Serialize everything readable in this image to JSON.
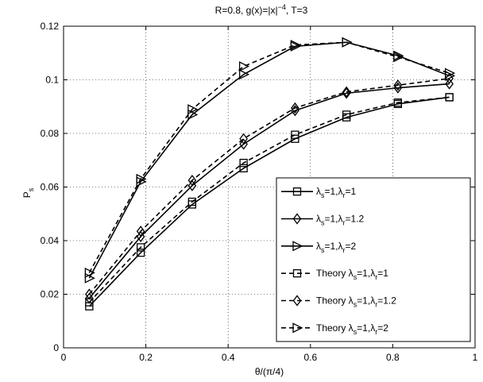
{
  "chart_data": {
    "type": "line",
    "title_prefix": "R=0.8, g(x)=|x|",
    "title_exp": "−4",
    "title_suffix": ", T=3",
    "xlabel": "θ/(π/4)",
    "ylabel_main": "P",
    "ylabel_sub": "s",
    "xlim": [
      0,
      1
    ],
    "ylim": [
      0,
      0.12
    ],
    "xticks": [
      "0",
      "0.2",
      "0.4",
      "0.6",
      "0.8",
      "1"
    ],
    "yticks": [
      "0",
      "0.02",
      "0.04",
      "0.06",
      "0.08",
      "0.1",
      "0.12"
    ],
    "grid": true,
    "legend_position": "bottom-right",
    "x": [
      0.0625,
      0.1875,
      0.3125,
      0.4375,
      0.5625,
      0.6875,
      0.8125,
      0.9375
    ],
    "series": [
      {
        "legend_prefix": "",
        "lr": "1",
        "marker": "square",
        "dash": "solid",
        "values": [
          0.0155,
          0.0355,
          0.0535,
          0.067,
          0.078,
          0.086,
          0.091,
          0.0935
        ]
      },
      {
        "legend_prefix": "",
        "lr": "1.2",
        "marker": "diamond",
        "dash": "solid",
        "values": [
          0.0185,
          0.0415,
          0.0605,
          0.076,
          0.0885,
          0.095,
          0.097,
          0.0985
        ]
      },
      {
        "legend_prefix": "",
        "lr": "2",
        "marker": "triangle-right",
        "dash": "solid",
        "values": [
          0.026,
          0.062,
          0.087,
          0.102,
          0.1125,
          0.114,
          0.109,
          0.1015
        ]
      },
      {
        "legend_prefix": "Theory ",
        "lr": "1",
        "marker": "square",
        "dash": "dashed",
        "values": [
          0.017,
          0.0375,
          0.0545,
          0.069,
          0.0795,
          0.087,
          0.0915,
          0.0935
        ]
      },
      {
        "legend_prefix": "Theory ",
        "lr": "1.2",
        "marker": "diamond",
        "dash": "dashed",
        "values": [
          0.02,
          0.0435,
          0.0625,
          0.078,
          0.0895,
          0.0955,
          0.098,
          0.1005
        ]
      },
      {
        "legend_prefix": "Theory ",
        "lr": "2",
        "marker": "triangle-right",
        "dash": "dashed",
        "values": [
          0.028,
          0.063,
          0.089,
          0.105,
          0.113,
          0.114,
          0.1085,
          0.1025
        ]
      }
    ]
  }
}
